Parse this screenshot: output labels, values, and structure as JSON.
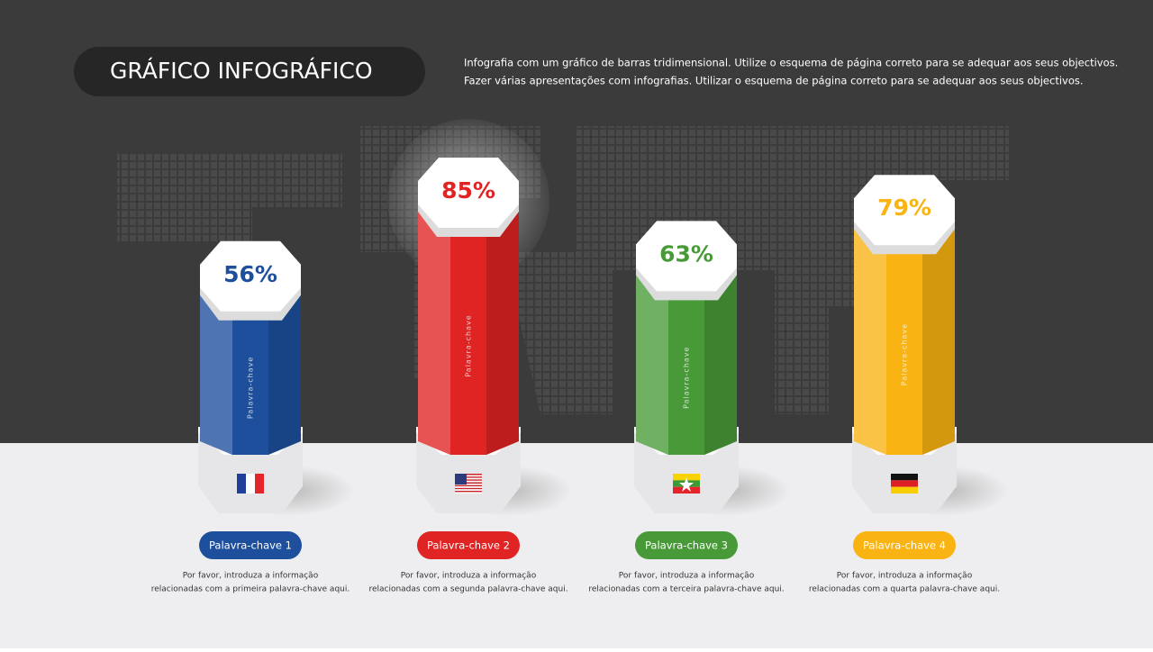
{
  "chart_data": {
    "type": "bar",
    "title": "GRÁFICO INFOGRÁFICO",
    "description": [
      "Infografia com um gráfico de barras tridimensional. Utilize o esquema de página correto para se adequar aos seus objectivos.",
      "Fazer várias apresentações com infografias. Utilizar o esquema de página correto para se adequar aos seus objectivos."
    ],
    "categories": [
      "Palavra-chave 1",
      "Palavra-chave 2",
      "Palavra-chave 3",
      "Palavra-chave 4"
    ],
    "values": [
      56,
      85,
      63,
      79
    ],
    "value_labels": [
      "56%",
      "85%",
      "63%",
      "79%"
    ],
    "colors": [
      "#1d4f9c",
      "#e02323",
      "#489a38",
      "#f9b312"
    ],
    "bar_labels": [
      "Palavra-chave",
      "Palavra-chave",
      "Palavra-chave",
      "Palavra-chave"
    ],
    "notes": [
      [
        "Por favor, introduza a informação",
        "relacionadas com a primeira palavra-chave aqui."
      ],
      [
        "Por favor, introduza a informação",
        "relacionadas com a segunda palavra-chave aqui."
      ],
      [
        "Por favor, introduza a informação",
        "relacionadas com a terceira palavra-chave aqui."
      ],
      [
        "Por favor, introduza a informação",
        "relacionadas com a quarta palavra-chave aqui."
      ]
    ]
  }
}
